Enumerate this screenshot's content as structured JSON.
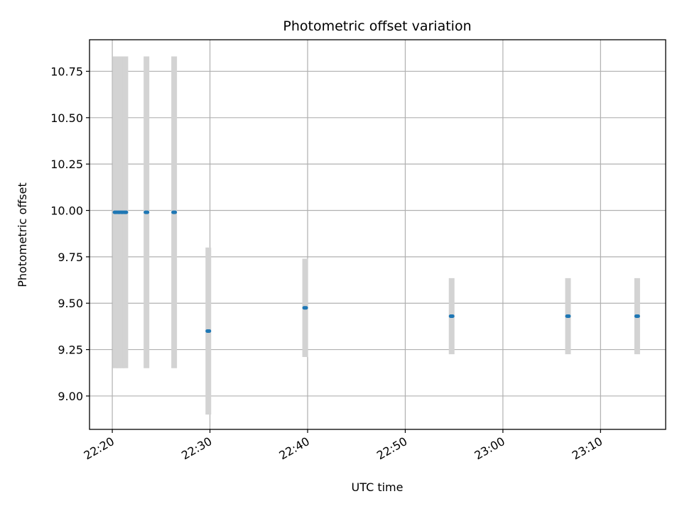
{
  "chart_data": {
    "type": "scatter",
    "title": "Photometric offset variation",
    "xlabel": "UTC time",
    "ylabel": "Photometric offset",
    "x_tick_labels": [
      "22:20",
      "22:30",
      "22:40",
      "22:50",
      "23:00",
      "23:10"
    ],
    "y_tick_labels": [
      "9.00",
      "9.25",
      "9.50",
      "9.75",
      "10.00",
      "10.25",
      "10.50",
      "10.75"
    ],
    "x_ticks": [
      "22:20",
      "22:30",
      "22:40",
      "22:50",
      "23:00",
      "23:10"
    ],
    "y_ticks": [
      9.0,
      9.25,
      9.5,
      9.75,
      10.0,
      10.25,
      10.5,
      10.75
    ],
    "xlim": [
      "22:17:40",
      "23:16:40"
    ],
    "ylim": [
      8.82,
      10.92
    ],
    "grid": true,
    "series": [
      {
        "color": "#1f77b4",
        "points": [
          {
            "x": "22:20:20",
            "y": 9.99,
            "ylow": 9.15,
            "yhigh": 10.83
          },
          {
            "x": "22:20:40",
            "y": 9.99,
            "ylow": 9.15,
            "yhigh": 10.83
          },
          {
            "x": "22:21:00",
            "y": 9.99,
            "ylow": 9.15,
            "yhigh": 10.83
          },
          {
            "x": "22:21:20",
            "y": 9.99,
            "ylow": 9.15,
            "yhigh": 10.83
          },
          {
            "x": "22:23:30",
            "y": 9.99,
            "ylow": 9.15,
            "yhigh": 10.83
          },
          {
            "x": "22:26:20",
            "y": 9.99,
            "ylow": 9.15,
            "yhigh": 10.83
          },
          {
            "x": "22:29:50",
            "y": 9.35,
            "ylow": 8.9,
            "yhigh": 9.8
          },
          {
            "x": "22:39:45",
            "y": 9.475,
            "ylow": 9.21,
            "yhigh": 9.74
          },
          {
            "x": "22:54:45",
            "y": 9.43,
            "ylow": 9.225,
            "yhigh": 9.635
          },
          {
            "x": "23:06:40",
            "y": 9.43,
            "ylow": 9.225,
            "yhigh": 9.635
          },
          {
            "x": "23:13:45",
            "y": 9.43,
            "ylow": 9.225,
            "yhigh": 9.635
          }
        ]
      }
    ],
    "errorbar_color": "#d3d3d3"
  }
}
